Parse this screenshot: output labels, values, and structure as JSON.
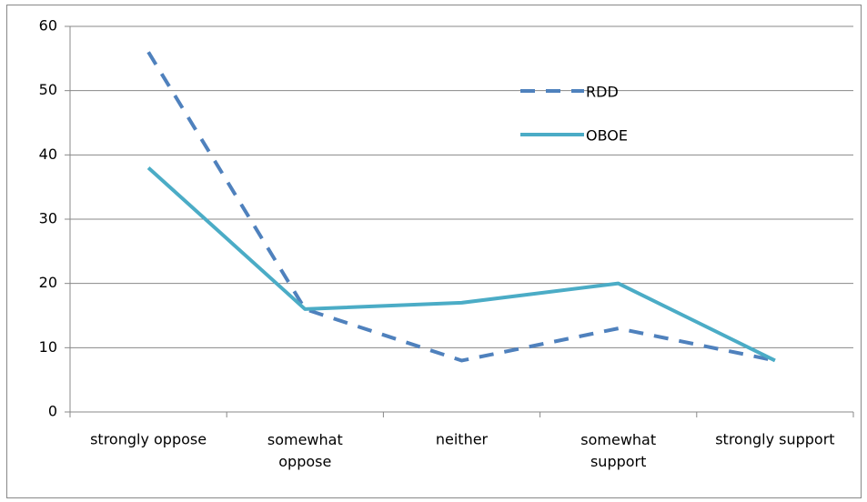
{
  "chart_data": {
    "type": "line",
    "categories": [
      "strongly oppose",
      "somewhat oppose",
      "neither",
      "somewhat support",
      "strongly support"
    ],
    "series": [
      {
        "name": "RDD",
        "color": "#4f81bd",
        "dashed": true,
        "values": [
          56,
          16,
          8,
          13,
          8
        ]
      },
      {
        "name": "OBOE",
        "color": "#4bacc6",
        "dashed": false,
        "values": [
          38,
          16,
          17,
          20,
          8
        ]
      }
    ],
    "ylim": [
      0,
      60
    ],
    "yticks": [
      0,
      10,
      20,
      30,
      40,
      50,
      60
    ],
    "grid": true
  }
}
